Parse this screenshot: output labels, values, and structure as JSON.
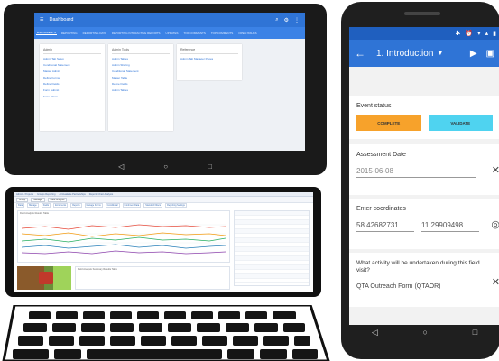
{
  "tablet": {
    "title": "Dashboard",
    "tabs": [
      "ENROLMENTS",
      "REPORTING",
      "REPORTING DATA",
      "REPORTING INTERACTIVE REPORTS",
      "UPDATES",
      "TOP COMMENTS",
      "TOP COMMENTS",
      "OPEN ISSUES"
    ],
    "columns": [
      {
        "head": "Admin",
        "links": [
          "Admin Tab Setup",
          "Conditional Statement",
          "Master Admin",
          "Define Forms",
          "Define Fields",
          "Form Submit",
          "Form Filters"
        ]
      },
      {
        "head": "Admin Tools",
        "links": [
          "Admin Tables",
          "Admin Sharing",
          "Conditional Statement",
          "Master Table",
          "Define Fields",
          "Admin Tables"
        ]
      },
      {
        "head": "Reference",
        "links": [
          "Admin Tab Manager Pages"
        ]
      }
    ]
  },
  "laptop": {
    "breadcrumbs": [
      "Admin - Projects",
      "Groups Reporting",
      "All Available Partnerships",
      "Reports Chart Analysis"
    ],
    "toolbar": [
      "Group",
      "Manage",
      "Field Analysis"
    ],
    "tabs": [
      "Data",
      "Manage",
      "Fields",
      "Enrolments",
      "Reports",
      "Manage Forms",
      "Conditional",
      "Enrolment Data",
      "Standard Filters",
      "Reporting Settings"
    ],
    "chart_title": "Field Analysis Results Table",
    "panel_title": "Field Analysis Summary Results Table"
  },
  "phone": {
    "status_icons": [
      "✱",
      "⏰",
      "▾",
      "▴",
      "▮"
    ],
    "time": "",
    "section_title": "1. Introduction",
    "event_status_label": "Event status",
    "complete_label": "COMPLETE",
    "validate_label": "VALIDATE",
    "assessment_date_label": "Assessment Date",
    "assessment_date_value": "2015-06-08",
    "coordinates_label": "Enter coordinates",
    "latitude": "58.42682731",
    "longitude": "11.29909498",
    "activity_question": "What activity will be undertaken during this field visit?",
    "activity_value": "QTA Outreach Form (QTAOR)",
    "colors": {
      "primary": "#2f74d6",
      "complete": "#f7a22b",
      "validate": "#4fd3f0"
    }
  }
}
